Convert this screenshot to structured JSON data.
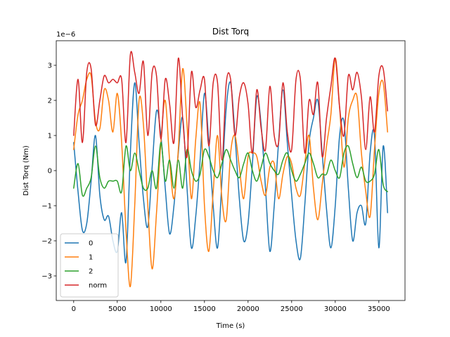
{
  "chart_data": {
    "type": "line",
    "title": "Dist Torq",
    "xlabel": "Time (s)",
    "ylabel": "Dist Torq (Nm)",
    "y_offset_label": "1e−6",
    "y_scale": 1e-06,
    "xlim": [
      -2000,
      38000
    ],
    "ylim": [
      -3.7,
      3.7
    ],
    "x_ticks": [
      0,
      5000,
      10000,
      15000,
      20000,
      25000,
      30000,
      35000
    ],
    "x_tick_labels": [
      "0",
      "5000",
      "10000",
      "15000",
      "20000",
      "25000",
      "30000",
      "35000"
    ],
    "y_ticks": [
      -3,
      -2,
      -1,
      0,
      1,
      2,
      3
    ],
    "y_tick_labels": [
      "−3",
      "−2",
      "−1",
      "0",
      "1",
      "2",
      "3"
    ],
    "grid": false,
    "legend_position": "lower-left",
    "series": [
      {
        "name": "0",
        "color": "#1f77b4",
        "x": [
          0,
          500,
          1000,
          1500,
          2000,
          2500,
          3000,
          3500,
          4000,
          4500,
          5000,
          5500,
          6000,
          6500,
          7000,
          7500,
          8000,
          8500,
          9000,
          9500,
          10000,
          10500,
          11000,
          11500,
          12000,
          12500,
          13000,
          13500,
          14000,
          14500,
          15000,
          15500,
          16000,
          16500,
          17000,
          17500,
          18000,
          18500,
          19000,
          19500,
          20000,
          20500,
          21000,
          21500,
          22000,
          22500,
          23000,
          23500,
          24000,
          24500,
          25000,
          25500,
          26000,
          26500,
          27000,
          27500,
          28000,
          28500,
          29000,
          29500,
          30000,
          30500,
          31000,
          31500,
          32000,
          32500,
          33000,
          33500,
          34000,
          34500,
          35000,
          35500,
          36000
        ],
        "values": [
          0.8,
          -0.6,
          -1.7,
          -1.5,
          -0.3,
          1.0,
          -0.7,
          -1.4,
          -1.3,
          -2.0,
          -2.3,
          -1.2,
          -2.6,
          0.5,
          2.5,
          0.8,
          -0.8,
          -1.6,
          0.1,
          1.7,
          1.0,
          -0.5,
          -1.8,
          -1.0,
          0.5,
          1.5,
          -0.5,
          -2.2,
          -1.3,
          0.3,
          2.2,
          0.8,
          -1.0,
          -2.2,
          -0.3,
          1.8,
          2.5,
          1.0,
          -0.8,
          -2.0,
          -1.5,
          0.2,
          2.1,
          1.3,
          -0.5,
          -2.3,
          -1.0,
          0.8,
          2.3,
          0.8,
          -0.7,
          -2.0,
          -2.5,
          -1.0,
          0.8,
          1.5,
          2.0,
          0.5,
          -1.1,
          -2.2,
          -1.0,
          1.0,
          1.4,
          -0.5,
          -2.0,
          -1.2,
          -1.0,
          -1.5,
          0.5,
          1.0,
          -2.2,
          0.7,
          -1.2
        ]
      },
      {
        "name": "1",
        "color": "#ff7f0e",
        "x": [
          0,
          500,
          1000,
          1500,
          2000,
          2500,
          3000,
          3500,
          4000,
          4500,
          5000,
          5500,
          6000,
          6500,
          7000,
          7500,
          8000,
          8500,
          9000,
          9500,
          10000,
          10500,
          11000,
          11500,
          12000,
          12500,
          13000,
          13500,
          14000,
          14500,
          15000,
          15500,
          16000,
          16500,
          17000,
          17500,
          18000,
          18500,
          19000,
          19500,
          20000,
          20500,
          21000,
          21500,
          22000,
          22500,
          23000,
          23500,
          24000,
          24500,
          25000,
          25500,
          26000,
          26500,
          27000,
          27500,
          28000,
          28500,
          29000,
          29500,
          30000,
          30500,
          31000,
          31500,
          32000,
          32500,
          33000,
          33500,
          34000,
          34500,
          35000,
          35500,
          36000
        ],
        "values": [
          0.6,
          1.6,
          2.0,
          2.6,
          2.7,
          1.4,
          1.2,
          2.3,
          2.0,
          1.1,
          2.2,
          0.8,
          -1.7,
          -3.3,
          -1.0,
          2.0,
          1.3,
          -1.0,
          -2.8,
          -1.2,
          0.8,
          2.0,
          0.3,
          -0.8,
          0.6,
          2.9,
          1.3,
          -0.8,
          0.9,
          1.9,
          -1.0,
          -2.3,
          -0.6,
          1.0,
          -0.8,
          -1.4,
          0.5,
          1.0,
          0.1,
          -0.8,
          0.4,
          0.5,
          0.4,
          -0.3,
          -0.7,
          0.1,
          0.2,
          -0.8,
          -0.1,
          0.4,
          0.2,
          -0.5,
          -0.7,
          0.2,
          1.0,
          -0.5,
          -1.4,
          -0.4,
          0.7,
          1.6,
          3.2,
          1.8,
          0.1,
          1.5,
          2.0,
          2.1,
          0.5,
          -0.6,
          -1.3,
          0.6,
          2.2,
          2.5,
          1.1
        ]
      },
      {
        "name": "2",
        "color": "#2ca02c",
        "x": [
          0,
          500,
          1000,
          1500,
          2000,
          2500,
          3000,
          3500,
          4000,
          4500,
          5000,
          5500,
          6000,
          6500,
          7000,
          7500,
          8000,
          8500,
          9000,
          9500,
          10000,
          10500,
          11000,
          11500,
          12000,
          12500,
          13000,
          13500,
          14000,
          14500,
          15000,
          15500,
          16000,
          16500,
          17000,
          17500,
          18000,
          18500,
          19000,
          19500,
          20000,
          20500,
          21000,
          21500,
          22000,
          22500,
          23000,
          23500,
          24000,
          24500,
          25000,
          25500,
          26000,
          26500,
          27000,
          27500,
          28000,
          28500,
          29000,
          29500,
          30000,
          30500,
          31000,
          31500,
          32000,
          32500,
          33000,
          33500,
          34000,
          34500,
          35000,
          35500,
          36000
        ],
        "values": [
          -0.5,
          0.2,
          -0.7,
          -0.5,
          -0.2,
          0.7,
          -0.2,
          -0.5,
          -0.3,
          -0.3,
          -0.3,
          -0.6,
          0.7,
          0.0,
          0.5,
          0.0,
          -0.5,
          -0.5,
          0.0,
          -0.5,
          0.8,
          -0.3,
          0.3,
          -0.5,
          0.3,
          -0.5,
          0.6,
          0.0,
          -0.3,
          -0.1,
          0.6,
          0.4,
          0.0,
          -0.2,
          0.2,
          0.6,
          0.3,
          0.0,
          -0.2,
          0.2,
          0.5,
          0.0,
          -0.3,
          0.1,
          0.5,
          0.2,
          0.0,
          -0.1,
          0.3,
          0.5,
          0.0,
          -0.3,
          -0.1,
          0.2,
          0.5,
          0.2,
          -0.2,
          -0.1,
          -0.1,
          0.3,
          0.0,
          -0.2,
          0.5,
          0.7,
          0.2,
          -0.2,
          0.1,
          -0.3,
          -0.3,
          -0.1,
          0.6,
          -0.4,
          -0.6
        ]
      },
      {
        "name": "norm",
        "color": "#d62728",
        "x": [
          0,
          500,
          1000,
          1500,
          2000,
          2500,
          3000,
          3500,
          4000,
          4500,
          5000,
          5500,
          6000,
          6500,
          7000,
          7500,
          8000,
          8500,
          9000,
          9500,
          10000,
          10500,
          11000,
          11500,
          12000,
          12500,
          13000,
          13500,
          14000,
          14500,
          15000,
          15500,
          16000,
          16500,
          17000,
          17500,
          18000,
          18500,
          19000,
          19500,
          20000,
          20500,
          21000,
          21500,
          22000,
          22500,
          23000,
          23500,
          24000,
          24500,
          25000,
          25500,
          26000,
          26500,
          27000,
          27500,
          28000,
          28500,
          29000,
          29500,
          30000,
          30500,
          31000,
          31500,
          32000,
          32500,
          33000,
          33500,
          34000,
          34500,
          35000,
          35500,
          36000
        ],
        "values": [
          1.0,
          2.6,
          0.8,
          2.8,
          2.9,
          1.3,
          2.0,
          2.7,
          2.5,
          2.6,
          2.5,
          2.6,
          0.8,
          3.3,
          2.8,
          2.2,
          3.1,
          1.0,
          2.8,
          2.7,
          0.9,
          2.6,
          1.9,
          0.8,
          3.2,
          1.5,
          0.4,
          2.8,
          1.8,
          2.3,
          2.6,
          0.7,
          2.5,
          2.5,
          0.3,
          2.5,
          2.6,
          1.0,
          2.1,
          2.5,
          1.9,
          0.5,
          2.3,
          1.2,
          0.6,
          2.4,
          1.0,
          0.8,
          2.5,
          1.1,
          0.6,
          2.6,
          2.6,
          0.5,
          2.0,
          1.6,
          2.5,
          0.4,
          1.5,
          2.4,
          3.2,
          1.8,
          1.0,
          2.7,
          2.3,
          2.8,
          2.1,
          0.6,
          2.1,
          1.1,
          2.7,
          2.9,
          1.7
        ]
      }
    ]
  }
}
